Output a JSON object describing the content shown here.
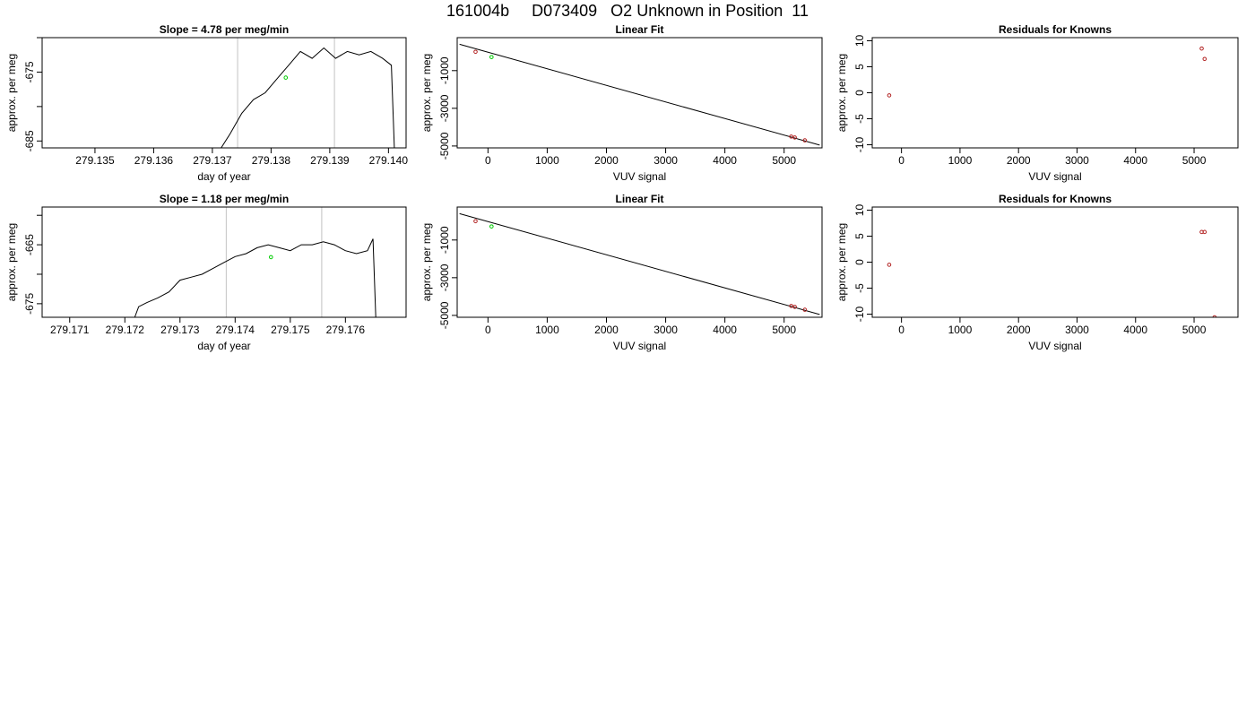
{
  "page": {
    "title": "161004b     D073409   O2 Unknown in Position  11"
  },
  "colors": {
    "trace": "#000000",
    "marker_known": "#b22222",
    "marker_unknown": "#00cc00",
    "window_line": "#cccccc"
  },
  "chart_data": [
    {
      "id": "p1",
      "type": "line",
      "title": "Slope =  4.78  per meg/min",
      "xlabel": "day of year",
      "ylabel": "approx. per meg",
      "xlim": [
        279.1341,
        279.1403
      ],
      "ylim": [
        -686,
        -670
      ],
      "xticks": [
        279.135,
        279.136,
        279.137,
        279.138,
        279.139,
        279.14
      ],
      "xtick_labels": [
        "279.135",
        "279.136",
        "279.137",
        "279.138",
        "279.139",
        "279.140"
      ],
      "yticks": [
        -685,
        -680,
        -675,
        -670
      ],
      "ytick_labels": [
        "-685",
        "",
        "-675",
        ""
      ],
      "vlines": [
        279.13743,
        279.13908
      ],
      "series": [
        {
          "x": [
            279.13715,
            279.1373,
            279.1375,
            279.1377,
            279.1379,
            279.1381,
            279.1383,
            279.1385,
            279.1387,
            279.1389,
            279.1391,
            279.1393,
            279.1395,
            279.1397,
            279.1399,
            279.14005,
            279.1401
          ],
          "y": [
            -686,
            -684,
            -681,
            -679,
            -678,
            -676,
            -674,
            -672,
            -673,
            -671.5,
            -673,
            -672,
            -672.5,
            -672,
            -673,
            -674,
            -686
          ]
        }
      ],
      "markers": [
        {
          "x": 279.13825,
          "y": -675.8,
          "role": "unknown"
        }
      ]
    },
    {
      "id": "p2",
      "type": "scatter",
      "title": "Linear Fit",
      "xlabel": "VUV signal",
      "ylabel": "approx. per meg",
      "xlim": [
        -520,
        5640
      ],
      "ylim": [
        -5100,
        750
      ],
      "xticks": [
        0,
        1000,
        2000,
        3000,
        4000,
        5000
      ],
      "xtick_labels": [
        "0",
        "1000",
        "2000",
        "3000",
        "4000",
        "5000"
      ],
      "yticks": [
        -5000,
        -3000,
        -1000
      ],
      "ytick_labels": [
        "-5000",
        "-3000",
        "-1000"
      ],
      "fit_line": {
        "x": [
          -480,
          5600
        ],
        "y": [
          400,
          -4950
        ]
      },
      "known_points": [
        {
          "x": -210,
          "y": 0
        },
        {
          "x": 5120,
          "y": -4500
        },
        {
          "x": 5180,
          "y": -4550
        },
        {
          "x": 5350,
          "y": -4700
        }
      ],
      "unknown_points": [
        {
          "x": 60,
          "y": -280
        }
      ]
    },
    {
      "id": "p3",
      "type": "scatter",
      "title": "Residuals for Knowns",
      "xlabel": "VUV signal",
      "ylabel": "approx. per meg",
      "xlim": [
        -500,
        5750
      ],
      "ylim": [
        -10.6,
        10.6
      ],
      "xticks": [
        0,
        1000,
        2000,
        3000,
        4000,
        5000
      ],
      "xtick_labels": [
        "0",
        "1000",
        "2000",
        "3000",
        "4000",
        "5000"
      ],
      "yticks": [
        -10,
        -5,
        0,
        5,
        10
      ],
      "ytick_labels": [
        "-10",
        "-5",
        "0",
        "5",
        "10"
      ],
      "points": [
        {
          "x": -210,
          "y": -0.5
        },
        {
          "x": 5130,
          "y": 8.5
        },
        {
          "x": 5180,
          "y": 6.5
        }
      ]
    },
    {
      "id": "p4",
      "type": "line",
      "title": "Slope =  1.18  per meg/min",
      "xlabel": "day of year",
      "ylabel": "approx. per meg",
      "xlim": [
        279.1705,
        279.1771
      ],
      "ylim": [
        -677.3,
        -658.6
      ],
      "xticks": [
        279.171,
        279.172,
        279.173,
        279.174,
        279.175,
        279.176
      ],
      "xtick_labels": [
        "279.171",
        "279.172",
        "279.173",
        "279.174",
        "279.175",
        "279.176"
      ],
      "yticks": [
        -675,
        -670,
        -665,
        -660
      ],
      "ytick_labels": [
        "-675",
        "",
        "-665",
        ""
      ],
      "vlines": [
        279.17384,
        279.17557
      ],
      "series": [
        {
          "x": [
            279.17218,
            279.17225,
            279.1724,
            279.1726,
            279.1728,
            279.173,
            279.1732,
            279.1734,
            279.1736,
            279.1738,
            279.174,
            279.1742,
            279.1744,
            279.1746,
            279.1748,
            279.175,
            279.1752,
            279.1754,
            279.1756,
            279.1758,
            279.176,
            279.1762,
            279.1764,
            279.1765,
            279.17655
          ],
          "y": [
            -677.3,
            -675.5,
            -674.8,
            -674,
            -673,
            -671,
            -670.5,
            -670,
            -669,
            -668,
            -667,
            -666.5,
            -665.5,
            -665,
            -665.5,
            -666,
            -665,
            -665,
            -664.5,
            -665,
            -666,
            -666.5,
            -666,
            -664,
            -677.3
          ]
        }
      ],
      "markers": [
        {
          "x": 279.17465,
          "y": -667.1,
          "role": "unknown"
        }
      ]
    },
    {
      "id": "p5",
      "type": "scatter",
      "title": "Linear Fit",
      "xlabel": "VUV signal",
      "ylabel": "approx. per meg",
      "xlim": [
        -520,
        5640
      ],
      "ylim": [
        -5100,
        750
      ],
      "xticks": [
        0,
        1000,
        2000,
        3000,
        4000,
        5000
      ],
      "xtick_labels": [
        "0",
        "1000",
        "2000",
        "3000",
        "4000",
        "5000"
      ],
      "yticks": [
        -5000,
        -3000,
        -1000
      ],
      "ytick_labels": [
        "-5000",
        "-3000",
        "-1000"
      ],
      "fit_line": {
        "x": [
          -480,
          5600
        ],
        "y": [
          400,
          -4950
        ]
      },
      "known_points": [
        {
          "x": -210,
          "y": 0
        },
        {
          "x": 5120,
          "y": -4500
        },
        {
          "x": 5180,
          "y": -4550
        },
        {
          "x": 5350,
          "y": -4700
        }
      ],
      "unknown_points": [
        {
          "x": 60,
          "y": -280
        }
      ]
    },
    {
      "id": "p6",
      "type": "scatter",
      "title": "Residuals for Knowns",
      "xlabel": "VUV signal",
      "ylabel": "approx. per meg",
      "xlim": [
        -500,
        5750
      ],
      "ylim": [
        -10.6,
        10.6
      ],
      "xticks": [
        0,
        1000,
        2000,
        3000,
        4000,
        5000
      ],
      "xtick_labels": [
        "0",
        "1000",
        "2000",
        "3000",
        "4000",
        "5000"
      ],
      "yticks": [
        -10,
        -5,
        0,
        5,
        10
      ],
      "ytick_labels": [
        "-10",
        "-5",
        "0",
        "5",
        "10"
      ],
      "points": [
        {
          "x": -210,
          "y": -0.5
        },
        {
          "x": 5130,
          "y": 5.8
        },
        {
          "x": 5180,
          "y": 5.8
        },
        {
          "x": 5350,
          "y": -10.6
        }
      ]
    }
  ]
}
